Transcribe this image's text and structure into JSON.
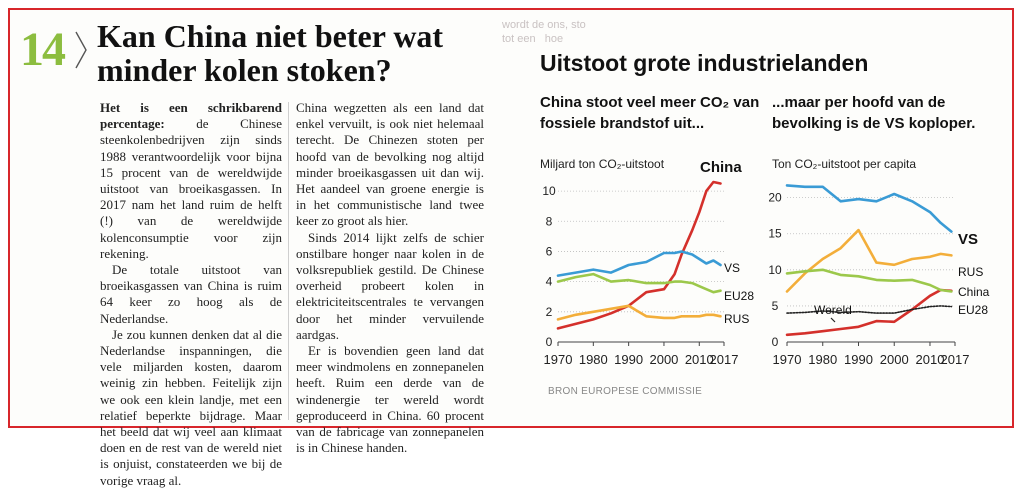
{
  "article": {
    "number": "14",
    "headline": "Kan China niet beter wat minder kolen stoken?",
    "col1": [
      {
        "lead": "Het is een schrikbarend percentage:",
        "text": " de Chinese steenkolenbedrijven zijn sinds 1988 verantwoordelijk voor bijna 15 procent van de wereldwijde uitstoot van broeikasgassen. In 2017 nam het land ruim de helft (!) van de wereldwijde kolenconsumptie voor zijn rekening."
      },
      {
        "lead": "",
        "text": "De totale uitstoot van broeikasgassen van China is ruim 64 keer zo hoog als de Nederlandse."
      },
      {
        "lead": "",
        "text": "Je zou kunnen denken dat al die Nederlandse inspanningen, die vele miljarden kosten, daarom weinig zin hebben. Feitelijk zijn we ook een klein landje, met een relatief beperkte bijdrage. Maar het beeld dat wij veel aan klimaat doen en de rest van de wereld niet is onjuist, constateerden we bij de vorige vraag al."
      }
    ],
    "col2": [
      "China wegzetten als een land dat enkel vervuilt, is ook niet helemaal terecht. De Chinezen stoten per hoofd van de bevolking nog altijd minder broeikasgassen uit dan wij. Het aandeel van groene energie is in het communistische land twee keer zo groot als hier.",
      "Sinds 2014 lijkt zelfs de schier onstilbare honger naar kolen in de volksrepubliek gestild. De Chinese overheid probeert kolen in elektriciteitscentrales te vervangen door het minder vervuilende aardgas.",
      "Er is bovendien geen land dat meer windmolens en zonnepanelen heeft. Ruim een derde van de windenergie ter wereld wordt geproduceerd in China. 60 procent van de fabricage van zonnepanelen is in Chinese handen."
    ]
  },
  "source": "BRON EUROPESE COMMISSIE",
  "colors": {
    "China": "#d4302b",
    "VS": "#3a9bd5",
    "EU28": "#9cc84b",
    "RUS": "#f3ae3a",
    "Wereld": "#222222",
    "frame": "#d8262b",
    "number": "#8cbd3f"
  },
  "chart_data": [
    {
      "type": "line",
      "title": "Uitstoot grote industrielanden",
      "subtitle": "China stoot veel meer CO₂ van fossiele brandstof uit...",
      "ylabel": "Miljard ton CO₂-uitstoot",
      "ylim": [
        0,
        11
      ],
      "yticks": [
        0,
        2,
        4,
        6,
        8,
        10
      ],
      "xlim": [
        1970,
        2017
      ],
      "xticks": [
        1970,
        1980,
        1990,
        2000,
        2010,
        2017
      ],
      "x": [
        1970,
        1975,
        1980,
        1985,
        1990,
        1995,
        2000,
        2003,
        2005,
        2008,
        2010,
        2012,
        2014,
        2016
      ],
      "series": [
        {
          "name": "China",
          "values": [
            0.9,
            1.2,
            1.5,
            1.9,
            2.4,
            3.3,
            3.5,
            4.5,
            5.8,
            7.4,
            8.6,
            10.0,
            10.6,
            10.5
          ]
        },
        {
          "name": "VS",
          "values": [
            4.4,
            4.6,
            4.8,
            4.6,
            5.1,
            5.3,
            5.9,
            5.9,
            6.0,
            5.8,
            5.5,
            5.2,
            5.4,
            5.1
          ]
        },
        {
          "name": "EU28",
          "values": [
            4.0,
            4.3,
            4.5,
            4.0,
            4.1,
            3.9,
            3.9,
            4.0,
            4.0,
            3.9,
            3.7,
            3.5,
            3.3,
            3.4
          ]
        },
        {
          "name": "RUS",
          "values": [
            1.5,
            1.8,
            2.0,
            2.2,
            2.4,
            1.7,
            1.6,
            1.6,
            1.7,
            1.7,
            1.7,
            1.8,
            1.8,
            1.7
          ]
        }
      ]
    },
    {
      "type": "line",
      "subtitle": "...maar per hoofd van de bevolking is de VS koploper.",
      "ylabel": "Ton CO₂-uitstoot per capita",
      "ylim": [
        0,
        23
      ],
      "yticks": [
        0,
        5,
        10,
        15,
        20
      ],
      "xlim": [
        1970,
        2017
      ],
      "xticks": [
        1970,
        1980,
        1990,
        2000,
        2010,
        2017
      ],
      "x": [
        1970,
        1975,
        1980,
        1985,
        1990,
        1995,
        2000,
        2005,
        2010,
        2013,
        2016
      ],
      "series": [
        {
          "name": "VS",
          "values": [
            21.7,
            21.5,
            21.5,
            19.5,
            19.8,
            19.5,
            20.5,
            19.5,
            18.0,
            16.5,
            15.3
          ]
        },
        {
          "name": "RUS",
          "values": [
            7.0,
            9.5,
            11.5,
            13.0,
            15.5,
            11.0,
            10.7,
            11.5,
            11.8,
            12.2,
            12.0
          ]
        },
        {
          "name": "China",
          "values": [
            1.0,
            1.2,
            1.5,
            1.8,
            2.1,
            2.9,
            2.8,
            4.5,
            6.4,
            7.2,
            7.1
          ]
        },
        {
          "name": "EU28",
          "values": [
            9.5,
            9.8,
            10.0,
            9.3,
            9.1,
            8.6,
            8.5,
            8.6,
            7.9,
            7.2,
            7.0
          ]
        },
        {
          "name": "Wereld",
          "values": [
            4.0,
            4.1,
            4.3,
            4.1,
            4.2,
            4.0,
            4.0,
            4.5,
            4.9,
            5.0,
            4.9
          ]
        }
      ]
    }
  ],
  "chart_labels": {
    "left": [
      {
        "name": "China",
        "text": "China"
      },
      {
        "name": "VS",
        "text": "VS"
      },
      {
        "name": "EU28",
        "text": "EU28"
      },
      {
        "name": "RUS",
        "text": "RUS"
      }
    ],
    "right": [
      {
        "name": "VS",
        "text": "VS"
      },
      {
        "name": "RUS",
        "text": "RUS"
      },
      {
        "name": "China",
        "text": "China"
      },
      {
        "name": "EU28",
        "text": "EU28"
      },
      {
        "name": "Wereld",
        "text": "Wereld"
      }
    ]
  }
}
